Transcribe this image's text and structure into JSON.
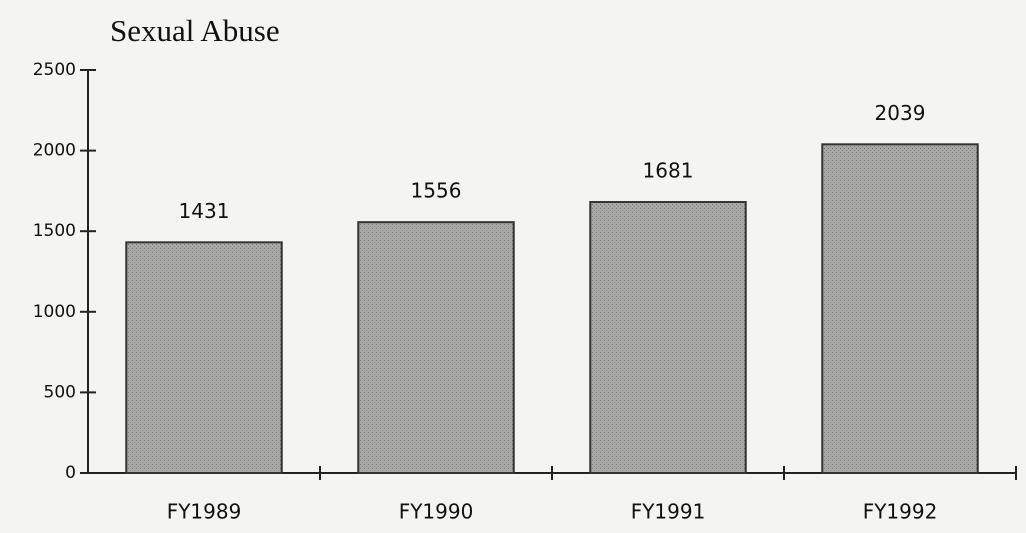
{
  "chart_data": {
    "type": "bar",
    "title": "Sexual Abuse",
    "categories": [
      "FY1989",
      "FY1990",
      "FY1991",
      "FY1992"
    ],
    "values": [
      1431,
      1556,
      1681,
      2039
    ],
    "color": "#a3a3a1",
    "ylim": [
      0,
      2500
    ],
    "yticks": [
      0,
      500,
      1000,
      1500,
      2000,
      2500
    ],
    "grid": false
  }
}
